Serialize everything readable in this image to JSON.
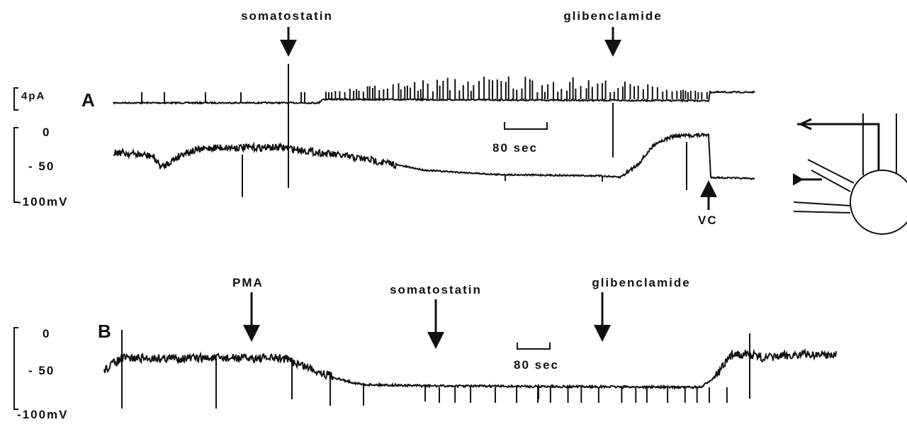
{
  "panels": [
    {
      "label": "A",
      "current_scale": "4pA",
      "y_axis_labels": [
        "0",
        "- 50",
        "-100mV"
      ],
      "scale_bar": "80  sec",
      "annotations": [
        "somatostatin",
        "glibenclamide",
        "VC"
      ]
    },
    {
      "label": "B",
      "y_axis_labels": [
        "0",
        "- 50",
        "-100mV"
      ],
      "scale_bar": "80  sec",
      "annotations": [
        "PMA",
        "somatostatin",
        "glibenclamide"
      ]
    }
  ]
}
